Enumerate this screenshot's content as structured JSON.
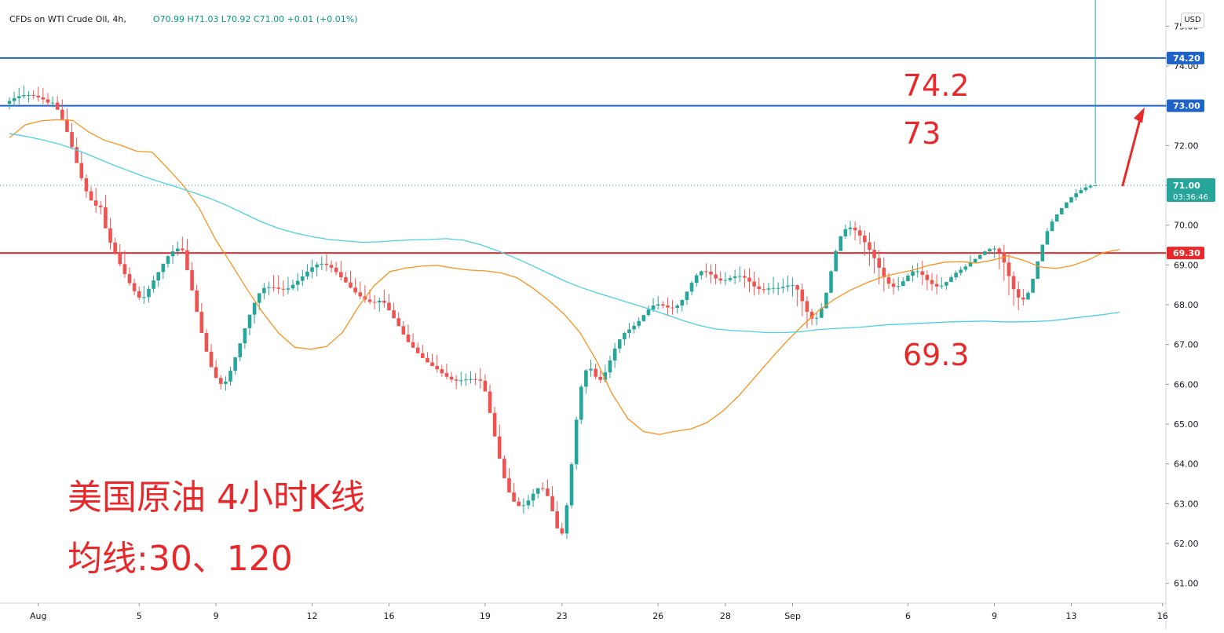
{
  "header": {
    "symbol": "CFDs on WTI Crude Oil, 4h,",
    "ohlc": "O70.99  H71.03  L70.92  C71.00  +0.01 (+0.01%)"
  },
  "currency_button": "USD",
  "annotations": {
    "level_742": "74.2",
    "level_73": "73",
    "level_693": "69.3",
    "caption_line1": "美国原油 4小时K线",
    "caption_line2": "均线:30、120"
  },
  "colors": {
    "up": "#26a69a",
    "down": "#ef5350",
    "ma30": "#f7931e",
    "ma120": "#4dd0e1",
    "resistance": "#1e63c8",
    "support": "#e8292b",
    "current_price": "#26a69a",
    "annotation": "#e8292b"
  },
  "chart_data": {
    "type": "candlestick",
    "title": "CFDs on WTI Crude Oil, 4h",
    "ylim": [
      60.5,
      75.5
    ],
    "y_ticks": [
      61,
      62,
      63,
      64,
      65,
      66,
      67,
      68,
      69,
      70,
      71,
      72,
      73,
      74,
      75
    ],
    "y_tick_labels": [
      "61.00",
      "62.00",
      "63.00",
      "64.00",
      "65.00",
      "66.00",
      "67.00",
      "68.00",
      "69.00",
      "70.00",
      "71.00",
      "72.00",
      "73.00",
      "74.00",
      "75.00"
    ],
    "x_ticks": [
      {
        "label": "Aug",
        "bar": 6
      },
      {
        "label": "5",
        "bar": 27
      },
      {
        "label": "9",
        "bar": 43
      },
      {
        "label": "12",
        "bar": 63
      },
      {
        "label": "16",
        "bar": 79
      },
      {
        "label": "19",
        "bar": 99
      },
      {
        "label": "23",
        "bar": 115
      },
      {
        "label": "26",
        "bar": 135
      },
      {
        "label": "28",
        "bar": 149
      },
      {
        "label": "Sep",
        "bar": 163
      },
      {
        "label": "6",
        "bar": 187
      },
      {
        "label": "9",
        "bar": 205
      },
      {
        "label": "13",
        "bar": 221
      },
      {
        "label": "16",
        "bar": 240
      }
    ],
    "bar_count": 232,
    "candles_open": [
      73.05,
      73.12,
      73.19,
      73.24,
      73.27,
      73.27,
      73.25,
      73.21,
      73.16,
      73.08,
      73.08,
      72.9,
      72.66,
      72.34,
      71.96,
      71.56,
      71.18,
      70.85,
      70.62,
      70.49,
      70.45,
      69.92,
      69.56,
      69.3,
      69.02,
      68.77,
      68.54,
      68.34,
      68.18,
      68.19,
      68.4,
      68.61,
      68.82,
      69.03,
      69.22,
      69.34,
      69.41,
      69.37,
      68.87,
      68.36,
      67.82,
      67.29,
      66.82,
      66.43,
      66.16,
      66.01,
      66.07,
      66.34,
      66.68,
      67.03,
      67.41,
      67.75,
      68.05,
      68.29,
      68.42,
      68.44,
      68.43,
      68.4,
      68.38,
      68.41,
      68.5,
      68.6,
      68.71,
      68.83,
      68.94,
      69.01,
      69.03,
      69.0,
      68.93,
      68.82,
      68.69,
      68.56,
      68.43,
      68.31,
      68.21,
      68.13,
      68.07,
      68.06,
      68.1,
      68.05,
      67.86,
      67.66,
      67.46,
      67.25,
      67.06,
      66.92,
      66.78,
      66.66,
      66.55,
      66.46,
      66.38,
      66.28,
      66.19,
      66.12,
      66.09,
      66.1,
      66.12,
      66.13,
      66.12,
      66.09,
      65.82,
      65.28,
      64.69,
      64.13,
      63.64,
      63.28,
      63.05,
      62.94,
      62.96,
      63.08,
      63.25,
      63.39,
      63.38,
      63.19,
      62.81,
      62.38,
      62.25,
      62.96,
      63.99,
      65.11,
      65.94,
      66.35,
      66.39,
      66.19,
      66.11,
      66.3,
      66.6,
      66.9,
      67.13,
      67.29,
      67.38,
      67.47,
      67.59,
      67.74,
      67.88,
      67.98,
      68.01,
      67.98,
      67.93,
      67.92,
      67.98,
      68.12,
      68.33,
      68.55,
      68.74,
      68.84,
      68.83,
      68.76,
      68.66,
      68.61,
      68.62,
      68.67,
      68.71,
      68.72,
      68.68,
      68.58,
      68.46,
      68.39,
      68.38,
      68.41,
      68.42,
      68.42,
      68.45,
      68.48,
      68.49,
      68.38,
      68.09,
      67.82,
      67.65,
      67.67,
      67.91,
      68.3,
      68.84,
      69.35,
      69.72,
      69.9,
      69.94,
      69.87,
      69.74,
      69.57,
      69.38,
      69.17,
      68.93,
      68.69,
      68.53,
      68.45,
      68.47,
      68.59,
      68.73,
      68.84,
      68.84,
      68.75,
      68.62,
      68.52,
      68.46,
      68.48,
      68.57,
      68.69,
      68.8,
      68.88,
      68.96,
      69.05,
      69.15,
      69.25,
      69.34,
      69.4,
      69.41,
      69.32,
      69.06,
      68.72,
      68.39,
      68.18,
      68.13,
      68.3,
      68.65,
      69.09,
      69.51,
      69.85,
      70.09,
      70.27,
      70.43,
      70.57,
      70.7,
      70.8,
      70.88,
      70.95,
      70.99
    ],
    "candles_high": [
      73.21,
      73.35,
      73.45,
      73.51,
      73.37,
      73.39,
      73.48,
      73.45,
      73.32,
      73.23,
      73.24,
      73.16,
      72.93,
      72.57,
      72.2,
      71.83,
      71.28,
      70.97,
      70.94,
      70.61,
      70.76,
      70.18,
      69.68,
      69.52,
      69.36,
      68.94,
      68.65,
      68.46,
      68.47,
      68.48,
      68.73,
      68.75,
      68.95,
      69.25,
      69.5,
      69.59,
      69.71,
      69.65,
      69.07,
      68.5,
      68.04,
      67.38,
      67.01,
      66.61,
      66.23,
      66.2,
      66.44,
      66.68,
      66.88,
      67.27,
      67.64,
      68.02,
      68.23,
      68.55,
      68.58,
      68.75,
      68.74,
      68.61,
      68.7,
      68.63,
      68.8,
      68.88,
      69.02,
      69.14,
      69.08,
      69.22,
      69.27,
      69.11,
      69.08,
      69.1,
      68.82,
      68.85,
      68.67,
      68.57,
      68.49,
      68.38,
      68.24,
      68.18,
      68.38,
      68.27,
      68.05,
      67.81,
      67.59,
      67.5,
      67.28,
      67.05,
      66.99,
      66.81,
      66.77,
      66.74,
      66.49,
      66.52,
      66.31,
      66.23,
      66.31,
      66.27,
      66.33,
      66.28,
      66.41,
      66.25,
      66.0,
      65.44,
      64.99,
      64.22,
      63.89,
      63.52,
      63.16,
      63.14,
      63.22,
      63.37,
      63.37,
      63.53,
      63.61,
      63.44,
      63.06,
      62.52,
      63.03,
      64.04,
      65.19,
      65.99,
      66.38,
      66.62,
      66.52,
      66.34,
      66.49,
      66.72,
      67.04,
      67.13,
      67.32,
      67.54,
      67.57,
      67.68,
      67.74,
      67.98,
      68.17,
      68.22,
      68.09,
      68.18,
      68.12,
      68.02,
      68.13,
      68.32,
      68.6,
      68.79,
      68.86,
      69.04,
      69.01,
      69.03,
      68.84,
      68.82,
      68.74,
      68.88,
      68.96,
      68.89,
      68.92,
      68.83,
      68.68,
      68.55,
      68.55,
      68.7,
      68.56,
      68.66,
      68.73,
      68.68,
      68.51,
      68.53,
      68.21,
      67.9,
      67.81,
      68.04,
      68.31,
      68.87,
      69.39,
      69.73,
      70.01,
      70.11,
      70.09,
      69.99,
      69.87,
      69.82,
      69.59,
      69.38,
      69.19,
      68.8,
      68.66,
      68.7,
      68.69,
      68.78,
      68.99,
      69.05,
      69.11,
      68.86,
      68.8,
      68.76,
      68.69,
      68.57,
      68.74,
      68.86,
      68.96,
      69.02,
      69.24,
      69.16,
      69.27,
      69.36,
      69.42,
      69.48,
      69.45,
      69.51,
      69.26,
      68.83,
      68.59,
      68.4,
      68.34,
      68.63,
      69.06,
      69.48,
      69.93,
      70.16,
      70.27,
      70.34,
      70.58,
      70.71,
      70.9,
      70.95,
      71.04,
      71.03,
      71.03
    ],
    "candles_low": [
      72.91,
      72.97,
      73.03,
      73.18,
      73.08,
      73.17,
      73.11,
      73.04,
      72.99,
      72.96,
      72.92,
      72.72,
      72.37,
      71.92,
      71.59,
      71.11,
      70.69,
      70.62,
      70.31,
      70.27,
      69.95,
      69.39,
      69.25,
      68.96,
      68.68,
      68.48,
      68.24,
      68.12,
      68.02,
      68.05,
      68.3,
      68.44,
      68.65,
      68.93,
      69.03,
      69.23,
      69.31,
      68.87,
      68.36,
      67.82,
      67.29,
      66.82,
      66.43,
      66.16,
      65.87,
      65.84,
      65.97,
      66.24,
      66.58,
      66.89,
      67.23,
      67.53,
      67.86,
      68.14,
      68.24,
      68.33,
      68.28,
      68.21,
      68.26,
      68.36,
      68.34,
      68.47,
      68.63,
      68.66,
      68.71,
      68.87,
      68.84,
      68.81,
      68.74,
      68.61,
      68.55,
      68.41,
      68.25,
      68.14,
      68.05,
      68.01,
      67.89,
      67.82,
      67.93,
      67.86,
      67.66,
      67.46,
      67.25,
      67.06,
      66.92,
      66.78,
      66.66,
      66.55,
      66.46,
      66.29,
      66.19,
      66.13,
      66.05,
      65.88,
      65.96,
      65.96,
      66.02,
      65.98,
      65.89,
      65.82,
      65.28,
      64.69,
      64.13,
      63.64,
      63.28,
      63.05,
      62.94,
      62.75,
      62.86,
      62.92,
      63.14,
      63.31,
      63.19,
      62.81,
      62.38,
      62.21,
      62.11,
      62.88,
      63.86,
      65.0,
      65.76,
      66.19,
      66.12,
      66.03,
      66.05,
      66.16,
      66.41,
      66.79,
      66.98,
      67.17,
      67.28,
      67.41,
      67.57,
      67.7,
      67.82,
      67.88,
      67.91,
      67.72,
      67.75,
      67.79,
      67.83,
      68.0,
      68.23,
      68.45,
      68.64,
      68.68,
      68.54,
      68.51,
      68.52,
      68.49,
      68.57,
      68.52,
      68.57,
      68.43,
      68.31,
      68.23,
      68.25,
      68.28,
      68.25,
      68.28,
      68.24,
      68.29,
      68.33,
      68.2,
      67.96,
      67.71,
      67.41,
      67.49,
      67.48,
      67.74,
      68.09,
      68.66,
      69.19,
      69.58,
      69.66,
      69.73,
      69.62,
      69.52,
      69.23,
      68.98,
      68.78,
      68.51,
      68.33,
      68.4,
      68.26,
      68.35,
      68.5,
      68.66,
      68.58,
      68.68,
      68.49,
      68.37,
      68.35,
      68.26,
      68.4,
      68.38,
      68.59,
      68.62,
      68.73,
      68.83,
      68.97,
      69.04,
      69.15,
      69.24,
      69.27,
      69.17,
      68.89,
      68.6,
      68.23,
      67.97,
      67.86,
      67.98,
      68.14,
      68.48,
      68.97,
      69.38,
      69.71,
      69.95,
      70.13,
      70.37,
      70.46,
      70.63,
      70.62,
      70.79,
      70.84,
      70.92
    ],
    "candles_close": [
      73.12,
      73.19,
      73.24,
      73.27,
      73.27,
      73.25,
      73.21,
      73.16,
      73.08,
      73.08,
      72.9,
      72.66,
      72.34,
      71.96,
      71.56,
      71.18,
      70.85,
      70.62,
      70.49,
      70.45,
      69.92,
      69.56,
      69.3,
      69.02,
      68.77,
      68.54,
      68.34,
      68.18,
      68.19,
      68.4,
      68.61,
      68.82,
      69.03,
      69.22,
      69.34,
      69.41,
      69.37,
      68.87,
      68.36,
      67.82,
      67.29,
      66.82,
      66.43,
      66.16,
      66.01,
      66.07,
      66.34,
      66.68,
      67.03,
      67.41,
      67.75,
      68.05,
      68.29,
      68.42,
      68.44,
      68.43,
      68.4,
      68.38,
      68.41,
      68.5,
      68.6,
      68.71,
      68.83,
      68.94,
      69.01,
      69.03,
      69.0,
      68.93,
      68.82,
      68.69,
      68.56,
      68.43,
      68.31,
      68.21,
      68.13,
      68.07,
      68.06,
      68.1,
      68.05,
      67.86,
      67.66,
      67.46,
      67.25,
      67.06,
      66.92,
      66.78,
      66.66,
      66.55,
      66.46,
      66.38,
      66.28,
      66.19,
      66.12,
      66.09,
      66.1,
      66.12,
      66.13,
      66.12,
      66.09,
      65.82,
      65.28,
      64.69,
      64.13,
      63.64,
      63.28,
      63.05,
      62.94,
      62.96,
      63.08,
      63.25,
      63.39,
      63.38,
      63.19,
      62.81,
      62.38,
      62.25,
      62.96,
      63.99,
      65.11,
      65.94,
      66.35,
      66.39,
      66.19,
      66.11,
      66.3,
      66.6,
      66.9,
      67.13,
      67.29,
      67.38,
      67.47,
      67.59,
      67.74,
      67.88,
      67.98,
      68.01,
      67.98,
      67.93,
      67.92,
      67.98,
      68.12,
      68.33,
      68.55,
      68.74,
      68.84,
      68.83,
      68.76,
      68.66,
      68.61,
      68.62,
      68.67,
      68.71,
      68.72,
      68.68,
      68.58,
      68.46,
      68.39,
      68.38,
      68.41,
      68.42,
      68.42,
      68.45,
      68.48,
      68.49,
      68.38,
      68.09,
      67.82,
      67.65,
      67.67,
      67.91,
      68.3,
      68.84,
      69.35,
      69.72,
      69.9,
      69.94,
      69.87,
      69.74,
      69.57,
      69.38,
      69.17,
      68.93,
      68.69,
      68.53,
      68.45,
      68.47,
      68.59,
      68.73,
      68.84,
      68.84,
      68.75,
      68.62,
      68.52,
      68.46,
      68.48,
      68.57,
      68.69,
      68.8,
      68.88,
      68.96,
      69.05,
      69.15,
      69.25,
      69.34,
      69.4,
      69.41,
      69.32,
      69.06,
      68.72,
      68.39,
      68.18,
      68.13,
      68.3,
      68.65,
      69.09,
      69.51,
      69.85,
      70.09,
      70.27,
      70.43,
      70.57,
      70.7,
      70.8,
      70.88,
      70.95,
      70.99,
      71.0
    ],
    "series": [
      {
        "name": "MA30",
        "start_bar": 0,
        "values": [
          72.2,
          72.52,
          72.62,
          72.65,
          72.63,
          72.34,
          72.13,
          72.01,
          71.86,
          71.83,
          71.42,
          70.98,
          70.4,
          69.64,
          69.02,
          68.38,
          67.79,
          67.28,
          66.93,
          66.88,
          66.95,
          67.3,
          67.94,
          68.48,
          68.83,
          68.92,
          68.97,
          68.99,
          68.92,
          68.87,
          68.85,
          68.8,
          68.68,
          68.42,
          68.11,
          67.76,
          67.29,
          66.61,
          65.77,
          65.14,
          64.81,
          64.74,
          64.82,
          64.88,
          65.04,
          65.33,
          65.71,
          66.17,
          66.63,
          67.07,
          67.47,
          67.84,
          68.13,
          68.36,
          68.54,
          68.69,
          68.79,
          68.87,
          68.99,
          69.07,
          69.08,
          69.05,
          69.12,
          69.23,
          69.11,
          68.95,
          68.91,
          68.98,
          69.12,
          69.31,
          69.39
        ]
      },
      {
        "name": "MA120",
        "start_bar": 0,
        "values": [
          72.3,
          72.23,
          72.14,
          72.03,
          71.89,
          71.72,
          71.54,
          71.38,
          71.22,
          71.08,
          70.95,
          70.81,
          70.66,
          70.48,
          70.28,
          70.08,
          69.92,
          69.8,
          69.71,
          69.64,
          69.6,
          69.57,
          69.58,
          69.61,
          69.63,
          69.64,
          69.66,
          69.62,
          69.51,
          69.36,
          69.19,
          69.0,
          68.8,
          68.6,
          68.43,
          68.29,
          68.16,
          68.03,
          67.9,
          67.76,
          67.61,
          67.48,
          67.39,
          67.35,
          67.33,
          67.3,
          67.3,
          67.32,
          67.37,
          67.4,
          67.42,
          67.45,
          67.49,
          67.51,
          67.53,
          67.55,
          67.57,
          67.58,
          67.59,
          67.57,
          67.57,
          67.58,
          67.6,
          67.65,
          67.7,
          67.75,
          67.81
        ]
      }
    ],
    "hlines": [
      {
        "price": 74.2,
        "label": "74.20",
        "color": "#1e63c8"
      },
      {
        "price": 73.0,
        "label": "73.00",
        "color": "#1e63c8"
      },
      {
        "price": 69.3,
        "label": "69.30",
        "color": "#e8292b"
      }
    ],
    "current_price": {
      "value": 71.0,
      "label": "71.00",
      "countdown": "03:36:46"
    }
  }
}
